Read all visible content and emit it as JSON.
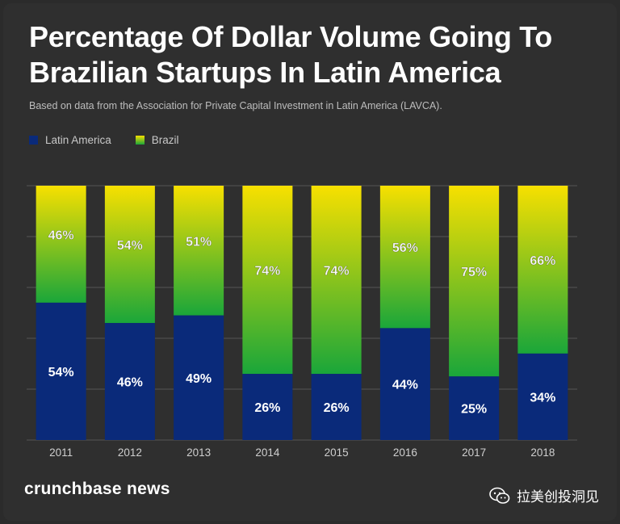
{
  "title": "Percentage Of Dollar Volume Going To Brazilian Startups In Latin America",
  "subtitle": "Based on data from the Association for Private Capital Investment in Latin America (LAVCA).",
  "legend": [
    {
      "label": "Latin America",
      "color": "#0a2a7a"
    },
    {
      "label": "Brazil",
      "color": "#62c02b"
    }
  ],
  "footer": {
    "brand": "crunchbase news",
    "watermark": "拉美创投洞见",
    "watermark_icon": "wechat-icon"
  },
  "chart_data": {
    "type": "bar",
    "stacked": true,
    "normalized_percent": true,
    "categories": [
      "2011",
      "2012",
      "2013",
      "2014",
      "2015",
      "2016",
      "2017",
      "2018"
    ],
    "series": [
      {
        "name": "Latin America",
        "values": [
          54,
          46,
          49,
          26,
          26,
          44,
          25,
          34
        ],
        "labels": [
          "54%",
          "46%",
          "49%",
          "26%",
          "26%",
          "44%",
          "25%",
          "34%"
        ],
        "color": "#0a2a7a"
      },
      {
        "name": "Brazil",
        "values": [
          46,
          54,
          51,
          74,
          74,
          56,
          75,
          66
        ],
        "labels": [
          "46%",
          "54%",
          "51%",
          "74%",
          "74%",
          "56%",
          "75%",
          "66%"
        ],
        "color_bottom": "#1aa63a",
        "color_top": "#f7e000"
      }
    ],
    "ylim": [
      0,
      100
    ],
    "grid": true,
    "legend_position": "top-left"
  }
}
